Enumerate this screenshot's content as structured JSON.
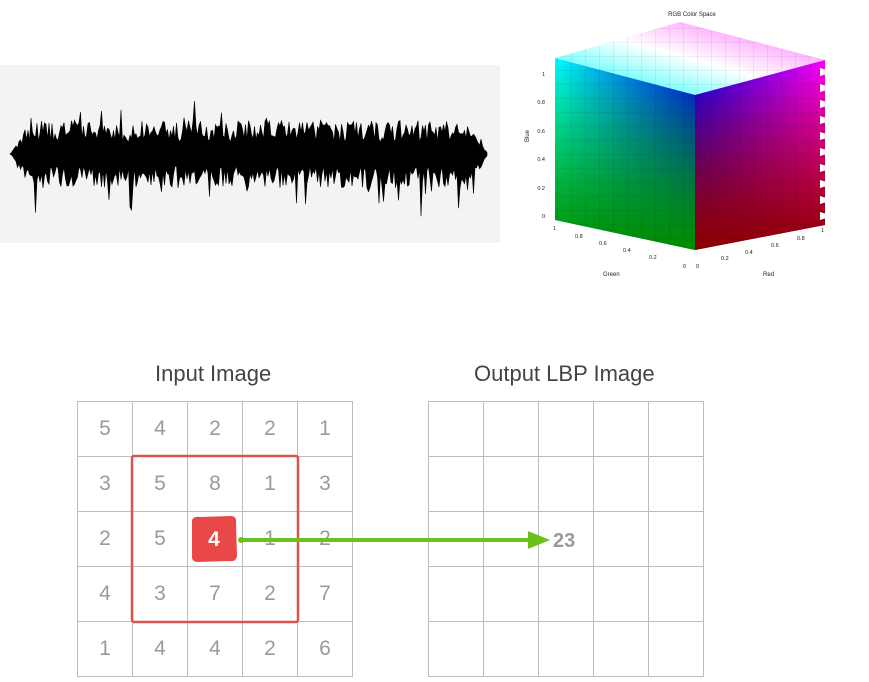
{
  "input_image": {
    "title": "Input Image",
    "grid": [
      [
        "5",
        "4",
        "2",
        "2",
        "1"
      ],
      [
        "3",
        "5",
        "8",
        "1",
        "3"
      ],
      [
        "2",
        "5",
        "4",
        "1",
        "2"
      ],
      [
        "4",
        "3",
        "7",
        "2",
        "7"
      ],
      [
        "1",
        "4",
        "4",
        "2",
        "6"
      ]
    ],
    "center_value": "4"
  },
  "output_image": {
    "title": "Output LBP Image",
    "result_value": "23"
  },
  "rgb_cube": {
    "title": "RGB Color Space",
    "blue_label": "Blue",
    "green_label": "Green",
    "red_label": "Red",
    "blue_ticks": [
      "0",
      "0.2",
      "0.4",
      "0.6",
      "0.8",
      "1"
    ],
    "green_ticks": [
      "1",
      "0.8",
      "0.6",
      "0.4",
      "0.2",
      "0"
    ],
    "red_ticks": [
      "0",
      "0.2",
      "0.4",
      "0.6",
      "0.8",
      "1"
    ]
  },
  "colors": {
    "highlight_box": "#d9534f",
    "center_fill": "#e84848",
    "arrow": "#6cc01a",
    "grid_line": "#bdbdbd"
  }
}
